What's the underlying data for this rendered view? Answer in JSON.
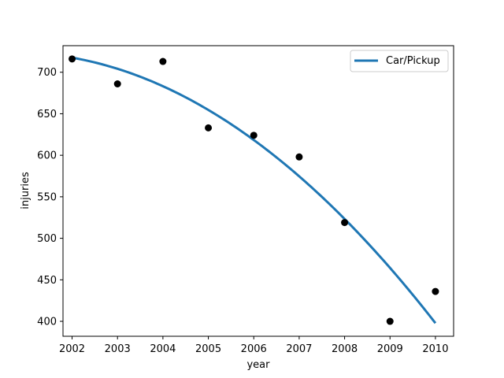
{
  "chart_data": {
    "type": "scatter",
    "xlabel": "year",
    "ylabel": "injuries",
    "xlim": [
      2001.8,
      2010.4
    ],
    "ylim": [
      382,
      732
    ],
    "xticks": [
      2002,
      2003,
      2004,
      2005,
      2006,
      2007,
      2008,
      2009,
      2010
    ],
    "yticks": [
      400,
      450,
      500,
      550,
      600,
      650,
      700
    ],
    "points": {
      "x": [
        2002,
        2003,
        2004,
        2005,
        2006,
        2007,
        2008,
        2009,
        2010
      ],
      "y": [
        716,
        686,
        713,
        633,
        624,
        598,
        519,
        400,
        436
      ],
      "color": "#000000"
    },
    "series": [
      {
        "name": "Car/Pickup",
        "type": "line",
        "color": "#1f77b4",
        "x": [
          2002,
          2003,
          2004,
          2005,
          2006,
          2007,
          2008,
          2009,
          2010
        ],
        "y": [
          718,
          704,
          683,
          654,
          618,
          575,
          524,
          465,
          397
        ]
      }
    ],
    "legend": {
      "position": "upper-right"
    },
    "grid": false
  }
}
